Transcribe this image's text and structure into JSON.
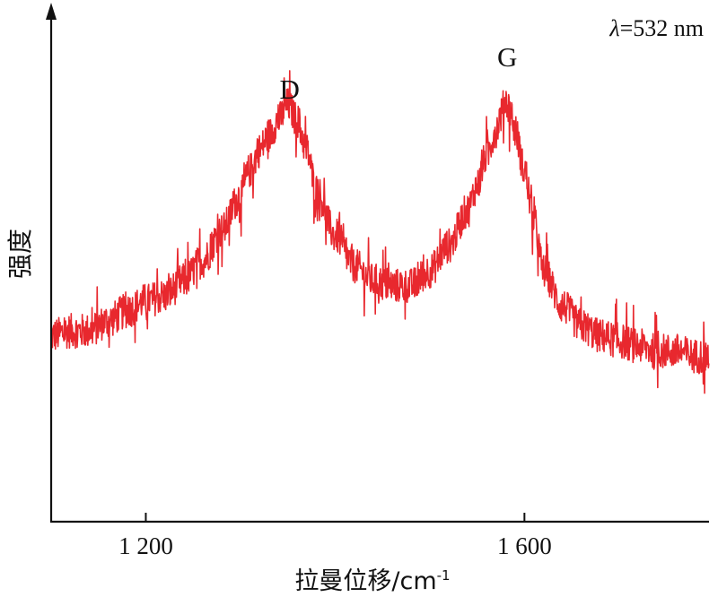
{
  "chart_data": {
    "type": "line",
    "title": "",
    "annotation": "λ=532 nm",
    "annotation_parts": {
      "symbol": "λ",
      "rest": "=532 nm"
    },
    "xlabel": "拉曼位移/cm⁻¹",
    "xlabel_parts": {
      "base": "拉曼位移/cm",
      "sup": "-1"
    },
    "ylabel": "强度",
    "xlim": [
      1100,
      1300,
      1600,
      1800
    ],
    "xlim_note": "axis range",
    "x_range": [
      1100,
      1795
    ],
    "y_range": [
      0,
      1
    ],
    "x_ticks": [
      1200,
      1600
    ],
    "x_tick_labels": [
      "1 200",
      "1 600"
    ],
    "y_ticks_shown": false,
    "grid": false,
    "peaks": [
      {
        "label": "D",
        "x": 1350
      },
      {
        "label": "G",
        "x": 1580
      }
    ],
    "series": [
      {
        "color": "#e8282e",
        "x": [
          1100,
          1120,
          1140,
          1160,
          1180,
          1200,
          1220,
          1240,
          1260,
          1280,
          1300,
          1310,
          1320,
          1330,
          1340,
          1350,
          1360,
          1370,
          1380,
          1400,
          1420,
          1440,
          1460,
          1480,
          1500,
          1520,
          1540,
          1550,
          1560,
          1570,
          1575,
          1580,
          1585,
          1590,
          1600,
          1610,
          1620,
          1640,
          1660,
          1680,
          1700,
          1720,
          1740,
          1760,
          1780,
          1795
        ],
        "values": [
          0.37,
          0.38,
          0.38,
          0.4,
          0.42,
          0.44,
          0.45,
          0.48,
          0.52,
          0.58,
          0.65,
          0.7,
          0.74,
          0.77,
          0.8,
          0.83,
          0.8,
          0.74,
          0.66,
          0.57,
          0.51,
          0.48,
          0.47,
          0.47,
          0.5,
          0.55,
          0.62,
          0.67,
          0.73,
          0.78,
          0.81,
          0.84,
          0.82,
          0.78,
          0.7,
          0.6,
          0.5,
          0.43,
          0.39,
          0.37,
          0.36,
          0.35,
          0.34,
          0.34,
          0.33,
          0.33
        ]
      }
    ],
    "noise_amplitude": 0.035
  }
}
